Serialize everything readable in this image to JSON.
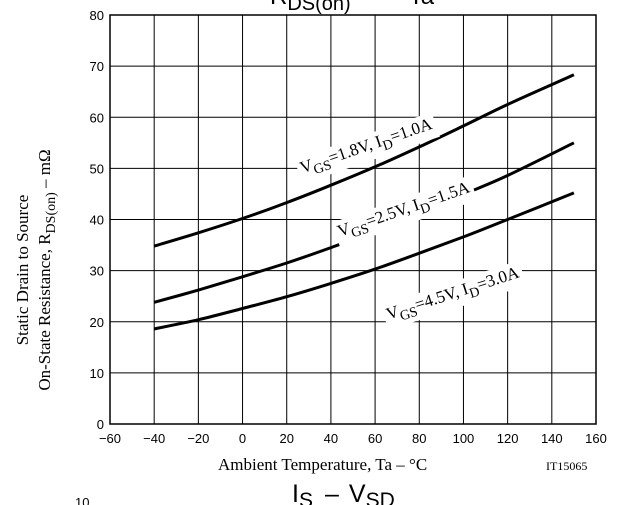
{
  "chart_data": {
    "type": "line",
    "title_base": "R",
    "title_sub": "DS(on)",
    "title_dash": "—",
    "title_rhs": "Ta",
    "xlabel": "Ambient Temperature, Ta  –  °C",
    "ylabel_line1": "Static Drain to Source",
    "ylabel_line2_pre": "On-State Resistance, R",
    "ylabel_line2_sub": "DS(on)",
    "ylabel_line2_post": "  –  mΩ",
    "code": "IT15065",
    "xlim": [
      -60,
      160
    ],
    "ylim": [
      0,
      80
    ],
    "xticks": [
      -60,
      -40,
      -20,
      0,
      20,
      40,
      60,
      80,
      100,
      120,
      140,
      160
    ],
    "yticks": [
      0,
      10,
      20,
      30,
      40,
      50,
      60,
      70,
      80
    ],
    "grid": true,
    "series": [
      {
        "name": "VGS=1.8V, ID=1.0A",
        "label_parts": [
          "V",
          "GS",
          "=1.8V, I",
          "D",
          "=1.0A"
        ],
        "label_pos": [
          27,
          49
        ],
        "label_angle": -19,
        "x": [
          -40,
          -20,
          0,
          20,
          40,
          60,
          80,
          100,
          120,
          150
        ],
        "y": [
          34.8,
          37.4,
          40.2,
          43.3,
          46.7,
          50.3,
          54.2,
          58.3,
          62.5,
          68.3
        ]
      },
      {
        "name": "VGS=2.5V, ID=1.5A",
        "label_parts": [
          "V",
          "GS",
          "=2.5V, I",
          "D",
          "=1.5A"
        ],
        "label_pos": [
          44,
          36.6
        ],
        "label_angle": -19,
        "x": [
          -40,
          -20,
          0,
          20,
          40,
          60,
          80,
          100,
          120,
          150
        ],
        "y": [
          23.8,
          26.2,
          28.8,
          31.5,
          34.5,
          37.7,
          41.2,
          44.9,
          48.6,
          55
        ]
      },
      {
        "name": "VGS=4.5V, ID=3.0A",
        "label_parts": [
          "V",
          "GS",
          "=4.5V, I",
          "D",
          "=3.0A"
        ],
        "label_pos": [
          66,
          20.4
        ],
        "label_angle": -18,
        "x": [
          -40,
          -20,
          0,
          20,
          40,
          60,
          80,
          100,
          120,
          150
        ],
        "y": [
          18.6,
          20.4,
          22.6,
          24.9,
          27.5,
          30.3,
          33.4,
          36.6,
          40,
          45.2
        ]
      }
    ]
  },
  "next_title": {
    "base1": "I",
    "sub1": "S",
    "dash": "–",
    "base2": "V",
    "sub2": "SD"
  },
  "next_tick": "10"
}
